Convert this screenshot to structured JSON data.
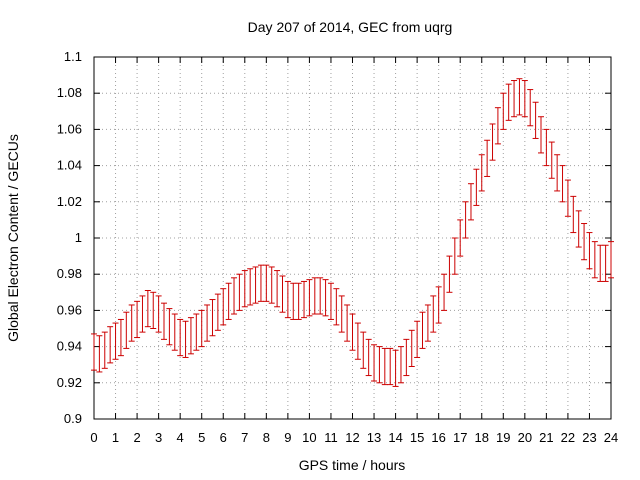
{
  "chart_data": {
    "type": "scatter",
    "title": "Day 207 of 2014, GEC from uqrg",
    "xlabel": "GPS time / hours",
    "ylabel": "Global Electron Content / GECUs",
    "xlim": [
      0,
      24
    ],
    "ylim": [
      0.9,
      1.1
    ],
    "xticks": [
      "0",
      "1",
      "2",
      "3",
      "4",
      "5",
      "6",
      "7",
      "8",
      "9",
      "10",
      "11",
      "12",
      "13",
      "14",
      "15",
      "16",
      "17",
      "18",
      "19",
      "20",
      "21",
      "22",
      "23",
      "24"
    ],
    "yticks": [
      "0.9",
      "0.92",
      "0.94",
      "0.96",
      "0.98",
      "1",
      "1.02",
      "1.04",
      "1.06",
      "1.08",
      "1.1"
    ],
    "grid": true,
    "error_color": "#cc0000",
    "series": [
      {
        "x": [
          0,
          0.25,
          0.5,
          0.75,
          1,
          1.25,
          1.5,
          1.75,
          2,
          2.25,
          2.5,
          2.75,
          3,
          3.25,
          3.5,
          3.75,
          4,
          4.25,
          4.5,
          4.75,
          5,
          5.25,
          5.5,
          5.75,
          6,
          6.25,
          6.5,
          6.75,
          7,
          7.25,
          7.5,
          7.75,
          8,
          8.25,
          8.5,
          8.75,
          9,
          9.25,
          9.5,
          9.75,
          10,
          10.25,
          10.5,
          10.75,
          11,
          11.25,
          11.5,
          11.75,
          12,
          12.25,
          12.5,
          12.75,
          13,
          13.25,
          13.5,
          13.75,
          14,
          14.25,
          14.5,
          14.75,
          15,
          15.25,
          15.5,
          15.75,
          16,
          16.25,
          16.5,
          16.75,
          17,
          17.25,
          17.5,
          17.75,
          18,
          18.25,
          18.5,
          18.75,
          19,
          19.25,
          19.5,
          19.75,
          20,
          20.25,
          20.5,
          20.75,
          21,
          21.25,
          21.5,
          21.75,
          22,
          22.25,
          22.5,
          22.75,
          23,
          23.25,
          23.5,
          23.75,
          24
        ],
        "y": [
          0.937,
          0.936,
          0.938,
          0.941,
          0.943,
          0.945,
          0.949,
          0.953,
          0.955,
          0.958,
          0.961,
          0.96,
          0.958,
          0.954,
          0.951,
          0.948,
          0.945,
          0.944,
          0.946,
          0.948,
          0.95,
          0.953,
          0.956,
          0.959,
          0.962,
          0.965,
          0.968,
          0.97,
          0.972,
          0.973,
          0.974,
          0.975,
          0.975,
          0.974,
          0.972,
          0.969,
          0.966,
          0.965,
          0.965,
          0.966,
          0.967,
          0.968,
          0.968,
          0.967,
          0.965,
          0.962,
          0.958,
          0.953,
          0.948,
          0.943,
          0.938,
          0.934,
          0.931,
          0.93,
          0.929,
          0.929,
          0.928,
          0.93,
          0.934,
          0.939,
          0.944,
          0.949,
          0.953,
          0.958,
          0.963,
          0.97,
          0.98,
          0.99,
          1.0,
          1.01,
          1.02,
          1.028,
          1.036,
          1.044,
          1.053,
          1.062,
          1.07,
          1.075,
          1.077,
          1.078,
          1.077,
          1.072,
          1.065,
          1.057,
          1.05,
          1.043,
          1.036,
          1.03,
          1.022,
          1.013,
          1.005,
          0.998,
          0.993,
          0.988,
          0.986,
          0.986,
          0.988
        ],
        "error": 0.01
      }
    ]
  }
}
